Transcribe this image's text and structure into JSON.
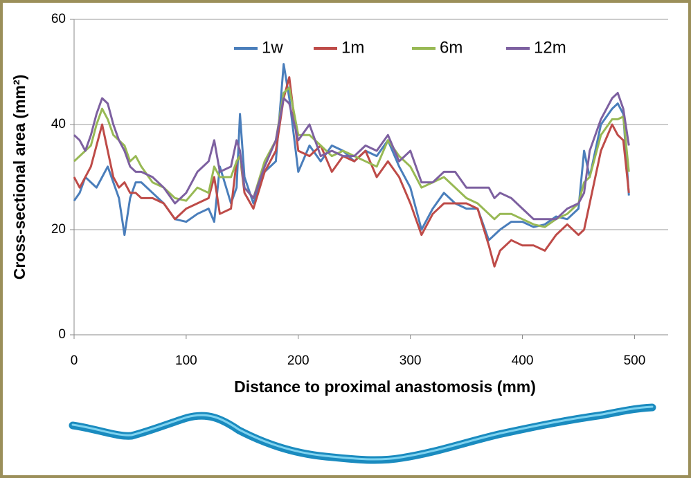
{
  "chart_data": {
    "type": "line",
    "x_label": "Distance to proximal anastomosis (mm)",
    "y_label": "Cross-sectional area (mm²)",
    "xlim": [
      0,
      530
    ],
    "ylim": [
      0,
      60
    ],
    "xticks": [
      0,
      100,
      200,
      300,
      400,
      500
    ],
    "yticks": [
      0,
      20,
      40,
      60
    ],
    "grid": true,
    "legend": "top",
    "x": [
      0,
      5,
      10,
      15,
      20,
      25,
      30,
      35,
      40,
      45,
      50,
      55,
      60,
      70,
      80,
      90,
      100,
      110,
      120,
      125,
      130,
      140,
      145,
      148,
      152,
      160,
      170,
      180,
      187,
      192,
      200,
      210,
      220,
      230,
      240,
      250,
      260,
      270,
      280,
      290,
      300,
      310,
      320,
      330,
      340,
      350,
      360,
      370,
      375,
      380,
      390,
      400,
      410,
      420,
      430,
      440,
      450,
      455,
      460,
      470,
      480,
      485,
      490,
      495
    ],
    "series": [
      {
        "name": "1w",
        "color": "#4a7ebb",
        "values": [
          25.5,
          27,
          30,
          29,
          28,
          30,
          32,
          29,
          26,
          19,
          26,
          29,
          29,
          27,
          25,
          22,
          21.5,
          23,
          24,
          21.5,
          32,
          25,
          28,
          42,
          30,
          25,
          31,
          33,
          51.5,
          45,
          31,
          36,
          33,
          36,
          35,
          33,
          35,
          34,
          37,
          32,
          28,
          20,
          24,
          27,
          25,
          24,
          24,
          18,
          19,
          20,
          21.5,
          21.5,
          20.5,
          21,
          22.5,
          22,
          24,
          35,
          30,
          40,
          43,
          44,
          42,
          26.5
        ]
      },
      {
        "name": "1m",
        "color": "#be4b48",
        "values": [
          30,
          28,
          30,
          32,
          36,
          40,
          35,
          30,
          28,
          29,
          27,
          27,
          26,
          26,
          25,
          22,
          24,
          25,
          26,
          30,
          23,
          24,
          33,
          34,
          27,
          24,
          31,
          35,
          45,
          49,
          35,
          34,
          36,
          31,
          34,
          33,
          35,
          30,
          33,
          30,
          25,
          19,
          23,
          25,
          25,
          25,
          24,
          17,
          13,
          16,
          18,
          17,
          17,
          16,
          19,
          21,
          19,
          20,
          25,
          35,
          40,
          38,
          37,
          27
        ]
      },
      {
        "name": "6m",
        "color": "#98b954",
        "values": [
          33,
          34,
          35,
          36,
          40,
          43,
          41,
          38,
          37,
          36,
          33,
          34,
          32,
          29,
          28,
          26,
          25.5,
          28,
          27,
          32,
          30,
          30,
          33,
          34,
          28,
          26,
          33,
          37,
          46,
          47,
          38,
          38,
          36,
          34,
          35,
          34,
          33,
          32,
          37,
          34,
          32,
          28,
          29,
          30,
          28,
          26,
          25,
          23,
          22,
          23,
          23,
          22,
          21,
          20.5,
          22,
          23,
          25,
          29,
          30,
          38,
          41,
          41,
          41.5,
          31
        ]
      },
      {
        "name": "12m",
        "color": "#7d60a0",
        "values": [
          38,
          37,
          35,
          38,
          42,
          45,
          44,
          40,
          37,
          35,
          32,
          31,
          31,
          30,
          28,
          25,
          27,
          31,
          33,
          37,
          31,
          32,
          37,
          35,
          28,
          26,
          32,
          37,
          45,
          44,
          37,
          40,
          34,
          35,
          34,
          34,
          36,
          35,
          38,
          33,
          35,
          29,
          29,
          31,
          31,
          28,
          28,
          28,
          26,
          27,
          26,
          24,
          22,
          22,
          22,
          24,
          25,
          27,
          35,
          41,
          45,
          46,
          43,
          36
        ]
      }
    ]
  }
}
